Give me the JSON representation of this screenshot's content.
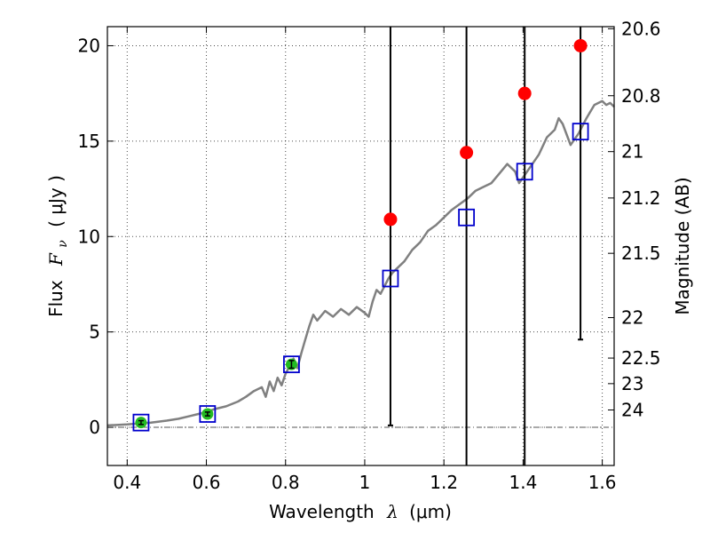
{
  "chart_data": {
    "type": "scatter",
    "title": "",
    "xlabel": "Wavelength",
    "xlabel_symbol": "λ",
    "xlabel_unit": "(μm)",
    "ylabel": "Flux",
    "ylabel_symbol": "F",
    "ylabel_subscript": "ν",
    "ylabel_unit": "( μJy )",
    "y2label": "Magnitude (AB)",
    "xlim": [
      0.35,
      1.63
    ],
    "ylim": [
      -2,
      21
    ],
    "grid": true,
    "x_ticks": [
      0.4,
      0.6,
      0.8,
      1.0,
      1.2,
      1.4,
      1.6
    ],
    "x_tick_labels": [
      "0.4",
      "0.6",
      "0.8",
      "1",
      "1.2",
      "1.4",
      "1.6"
    ],
    "y_ticks": [
      0,
      5,
      10,
      15,
      20
    ],
    "y_tick_labels": [
      "0",
      "5",
      "10",
      "15",
      "20"
    ],
    "y2_ticks": [
      {
        "label": "20.6",
        "flux": 20.89
      },
      {
        "label": "20.8",
        "flux": 17.38
      },
      {
        "label": "21",
        "flux": 14.45
      },
      {
        "label": "21.2",
        "flux": 12.02
      },
      {
        "label": "21.5",
        "flux": 9.12
      },
      {
        "label": "22",
        "flux": 5.75
      },
      {
        "label": "22.5",
        "flux": 3.63
      },
      {
        "label": "23",
        "flux": 2.29
      },
      {
        "label": "24",
        "flux": 0.91
      }
    ],
    "zero_line": 0,
    "series": [
      {
        "kind": "spectrum",
        "color": "#808080",
        "points": [
          [
            0.35,
            0.1
          ],
          [
            0.4,
            0.15
          ],
          [
            0.43,
            0.2
          ],
          [
            0.46,
            0.25
          ],
          [
            0.5,
            0.35
          ],
          [
            0.53,
            0.45
          ],
          [
            0.56,
            0.6
          ],
          [
            0.58,
            0.7
          ],
          [
            0.6,
            0.8
          ],
          [
            0.62,
            0.95
          ],
          [
            0.65,
            1.1
          ],
          [
            0.68,
            1.35
          ],
          [
            0.7,
            1.6
          ],
          [
            0.72,
            1.9
          ],
          [
            0.74,
            2.1
          ],
          [
            0.75,
            1.6
          ],
          [
            0.76,
            2.4
          ],
          [
            0.77,
            1.9
          ],
          [
            0.78,
            2.6
          ],
          [
            0.79,
            2.2
          ],
          [
            0.8,
            2.8
          ],
          [
            0.81,
            3.2
          ],
          [
            0.82,
            3.6
          ],
          [
            0.83,
            3.1
          ],
          [
            0.84,
            3.9
          ],
          [
            0.85,
            4.6
          ],
          [
            0.86,
            5.3
          ],
          [
            0.87,
            5.9
          ],
          [
            0.88,
            5.6
          ],
          [
            0.9,
            6.1
          ],
          [
            0.92,
            5.8
          ],
          [
            0.94,
            6.2
          ],
          [
            0.96,
            5.9
          ],
          [
            0.98,
            6.3
          ],
          [
            1.0,
            6.0
          ],
          [
            1.01,
            5.8
          ],
          [
            1.02,
            6.6
          ],
          [
            1.03,
            7.2
          ],
          [
            1.04,
            7.0
          ],
          [
            1.05,
            7.4
          ],
          [
            1.06,
            7.8
          ],
          [
            1.07,
            8.1
          ],
          [
            1.08,
            8.3
          ],
          [
            1.1,
            8.7
          ],
          [
            1.12,
            9.3
          ],
          [
            1.14,
            9.7
          ],
          [
            1.16,
            10.3
          ],
          [
            1.18,
            10.6
          ],
          [
            1.2,
            11.0
          ],
          [
            1.22,
            11.4
          ],
          [
            1.24,
            11.7
          ],
          [
            1.26,
            12.0
          ],
          [
            1.28,
            12.4
          ],
          [
            1.3,
            12.6
          ],
          [
            1.32,
            12.8
          ],
          [
            1.34,
            13.3
          ],
          [
            1.36,
            13.8
          ],
          [
            1.38,
            13.4
          ],
          [
            1.39,
            12.8
          ],
          [
            1.4,
            13.1
          ],
          [
            1.42,
            13.7
          ],
          [
            1.44,
            14.3
          ],
          [
            1.46,
            15.2
          ],
          [
            1.48,
            15.6
          ],
          [
            1.49,
            16.2
          ],
          [
            1.5,
            15.9
          ],
          [
            1.52,
            14.8
          ],
          [
            1.54,
            15.4
          ],
          [
            1.56,
            16.2
          ],
          [
            1.58,
            16.9
          ],
          [
            1.6,
            17.1
          ],
          [
            1.61,
            16.9
          ],
          [
            1.62,
            17.0
          ],
          [
            1.63,
            16.8
          ]
        ]
      },
      {
        "kind": "model_squares",
        "color": "#0000cc",
        "x": [
          0.435,
          0.603,
          0.815,
          1.065,
          1.257,
          1.404,
          1.545
        ],
        "y": [
          0.25,
          0.7,
          3.3,
          7.8,
          11.0,
          13.4,
          15.5
        ]
      },
      {
        "kind": "detections",
        "color": "#22bb22",
        "x": [
          0.435,
          0.603,
          0.815
        ],
        "y": [
          0.25,
          0.7,
          3.3
        ],
        "yerr": [
          0.1,
          0.1,
          0.2
        ]
      },
      {
        "kind": "upper_limits",
        "color": "#ff0000",
        "x": [
          1.065,
          1.257,
          1.404,
          1.545
        ],
        "y": [
          10.9,
          14.4,
          17.5,
          20.0
        ],
        "err_low": [
          0.1,
          -2,
          -2,
          4.6
        ],
        "err_high": [
          21,
          21,
          21,
          21
        ]
      }
    ]
  }
}
